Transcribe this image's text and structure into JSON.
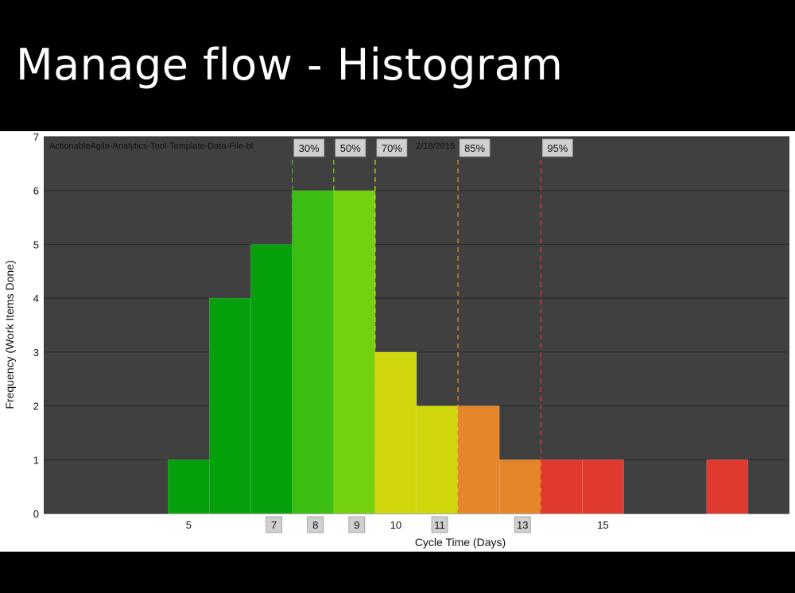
{
  "slide": {
    "title": "Manage flow - Histogram"
  },
  "chart_data": {
    "type": "bar",
    "title": "ActionableAgile-Analytics-Tool-Template-Data-File-bl",
    "title_suffix": "2/18/2015",
    "xlabel": "Cycle Time (Days)",
    "ylabel": "Frequency (Work Items Done)",
    "xlim": [
      1.5,
      19.5
    ],
    "ylim": [
      0,
      7
    ],
    "yticks": [
      0,
      1,
      2,
      3,
      4,
      5,
      6,
      7
    ],
    "xticks": [
      {
        "value": 5,
        "label": "5",
        "boxed": false
      },
      {
        "value": 7,
        "label": "7",
        "boxed": true
      },
      {
        "value": 8,
        "label": "8",
        "boxed": true
      },
      {
        "value": 9,
        "label": "9",
        "boxed": true
      },
      {
        "value": 10,
        "label": "10",
        "boxed": false
      },
      {
        "value": 11,
        "label": "11",
        "boxed": true
      },
      {
        "value": 13,
        "label": "13",
        "boxed": true
      },
      {
        "value": 15,
        "label": "15",
        "boxed": false
      }
    ],
    "bins": [
      {
        "start": 4.5,
        "value": 1,
        "color": "#05a00c"
      },
      {
        "start": 5.5,
        "value": 4,
        "color": "#05a00c"
      },
      {
        "start": 6.5,
        "value": 5,
        "color": "#05a00c"
      },
      {
        "start": 7.5,
        "value": 6,
        "color": "#3cbd12"
      },
      {
        "start": 8.5,
        "value": 6,
        "color": "#74d10f"
      },
      {
        "start": 9.5,
        "value": 3,
        "color": "#cfd70c"
      },
      {
        "start": 10.5,
        "value": 2,
        "color": "#cfd70c"
      },
      {
        "start": 11.5,
        "value": 2,
        "color": "#e5862a"
      },
      {
        "start": 12.5,
        "value": 1,
        "color": "#e5862a"
      },
      {
        "start": 13.5,
        "value": 1,
        "color": "#e03a2e"
      },
      {
        "start": 14.5,
        "value": 1,
        "color": "#e03a2e"
      },
      {
        "start": 17.5,
        "value": 1,
        "color": "#e03a2e"
      }
    ],
    "bin_width": 1,
    "percentiles": [
      {
        "label": "30%",
        "value": 7.5,
        "color": "#3cbd12"
      },
      {
        "label": "50%",
        "value": 8.5,
        "color": "#74d10f"
      },
      {
        "label": "70%",
        "value": 9.5,
        "color": "#cfd70c"
      },
      {
        "label": "85%",
        "value": 11.5,
        "color": "#e5862a"
      },
      {
        "label": "95%",
        "value": 13.5,
        "color": "#e03a2e"
      }
    ],
    "grid": true,
    "colors": {
      "plot_background": "#404040",
      "grid": "#2a2a2a",
      "marker_box": "#d0d0d0"
    }
  }
}
